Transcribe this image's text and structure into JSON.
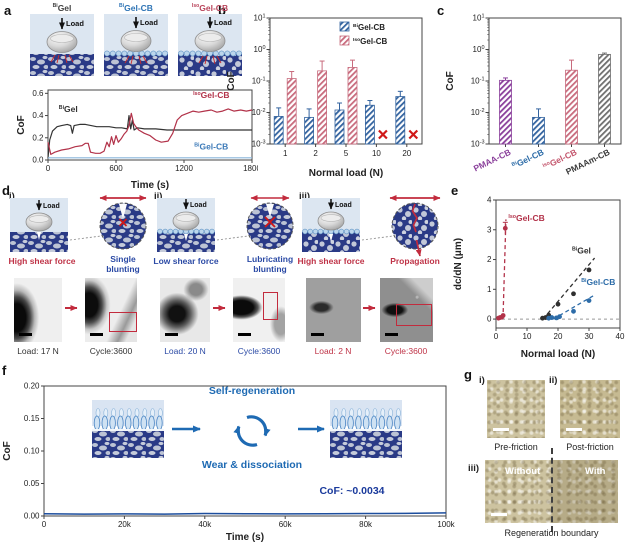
{
  "panels": {
    "a": {
      "label": "a",
      "schematics": [
        {
          "title": {
            "sup": "Bi",
            "text": "Gel"
          },
          "color": "#3f3f3f",
          "load_label": "Load"
        },
        {
          "title": {
            "sup": "Bi",
            "text": "Gel-CB"
          },
          "color": "#2e74b5",
          "load_label": "Load"
        },
        {
          "title": {
            "sup": "Iso",
            "text": "Gel-CB"
          },
          "color": "#b8435a",
          "load_label": "Load"
        }
      ]
    },
    "b": {
      "label": "b"
    },
    "c": {
      "label": "c"
    },
    "d": {
      "label": "d",
      "items": [
        {
          "roman": "i)",
          "load_label": "Load",
          "shear_label": "High shear force",
          "shear_color": "#bf3347",
          "inset_label": "Single blunting",
          "inset_color": "#2b4aa5",
          "load_caption": "Load: 17 N",
          "cycle_caption": "Cycle:3600",
          "caption_color": "#333333"
        },
        {
          "roman": "ii)",
          "load_label": "Load",
          "shear_label": "Low shear force",
          "shear_color": "#2b4aa5",
          "inset_label": "Lubricating blunting",
          "inset_color": "#2b4aa5",
          "load_caption": "Load: 20 N",
          "cycle_caption": "Cycle:3600",
          "caption_color": "#2b4aa5"
        },
        {
          "roman": "iii)",
          "load_label": "Load",
          "shear_label": "High shear force",
          "shear_color": "#bf3347",
          "inset_label": "Propagation",
          "inset_color": "#bf3347",
          "load_caption": "Load: 2 N",
          "cycle_caption": "Cycle:3600",
          "caption_color": "#bf3347"
        }
      ]
    },
    "e": {
      "label": "e"
    },
    "f": {
      "label": "f",
      "cycle_top": "Self-regeneration",
      "cycle_bottom": "Wear & dissociation",
      "cof_note": "CoF: ~0.0034",
      "accent": "#1e6ab3",
      "note_color": "#1a3a9c"
    },
    "g": {
      "label": "g",
      "items": [
        {
          "roman": "i)",
          "caption": "Pre-friction"
        },
        {
          "roman": "ii)",
          "caption": "Post-friction"
        }
      ],
      "bottom": {
        "roman": "iii)",
        "left_label": "Without",
        "right_label": "With",
        "caption": "Regeneration boundary"
      }
    }
  },
  "chart_data": [
    {
      "id": "a",
      "type": "line",
      "xlabel": "Time (s)",
      "ylabel": "CoF",
      "xlim": [
        0,
        1800
      ],
      "ylim": [
        0,
        0.63
      ],
      "xticks": [
        {
          "v": 0,
          "l": "0"
        },
        {
          "v": 600,
          "l": "600"
        },
        {
          "v": 1200,
          "l": "1200"
        },
        {
          "v": 1800,
          "l": "1800"
        }
      ],
      "yticks": [
        {
          "v": 0,
          "l": "0.0"
        },
        {
          "v": 0.2,
          "l": "0.2"
        },
        {
          "v": 0.4,
          "l": "0.4"
        },
        {
          "v": 0.6,
          "l": "0.6"
        }
      ],
      "series": [
        {
          "name": "BiGel",
          "color": "#333333",
          "width": 1.2,
          "label": {
            "sup": "Bi",
            "text": "Gel",
            "x": 95,
            "y": 0.43,
            "color": "#333333"
          },
          "points": [
            [
              0,
              0.02
            ],
            [
              15,
              0.18
            ],
            [
              40,
              0.26
            ],
            [
              80,
              0.3
            ],
            [
              120,
              0.31
            ],
            [
              170,
              0.32
            ],
            [
              200,
              0.31
            ],
            [
              215,
              0.24
            ],
            [
              230,
              0.31
            ],
            [
              280,
              0.32
            ],
            [
              330,
              0.32
            ],
            [
              380,
              0.31
            ],
            [
              430,
              0.3
            ],
            [
              480,
              0.3
            ],
            [
              540,
              0.3
            ],
            [
              600,
              0.29
            ],
            [
              650,
              0.29
            ],
            [
              700,
              0.28
            ],
            [
              715,
              0.4
            ],
            [
              730,
              0.28
            ],
            [
              745,
              0.36
            ],
            [
              760,
              0.27
            ],
            [
              790,
              0.29
            ],
            [
              850,
              0.28
            ],
            [
              950,
              0.28
            ],
            [
              1050,
              0.27
            ],
            [
              1150,
              0.27
            ],
            [
              1300,
              0.27
            ],
            [
              1500,
              0.27
            ],
            [
              1800,
              0.27
            ]
          ]
        },
        {
          "name": "IsoGel-CB",
          "color": "#b23249",
          "width": 1.2,
          "label": {
            "sup": "Iso",
            "text": "Gel-CB",
            "x": 1280,
            "y": 0.56,
            "color": "#b23249"
          },
          "points": [
            [
              0,
              0.16
            ],
            [
              25,
              0.05
            ],
            [
              60,
              0.07
            ],
            [
              120,
              0.09
            ],
            [
              180,
              0.1
            ],
            [
              240,
              0.12
            ],
            [
              300,
              0.13
            ],
            [
              330,
              0.15
            ],
            [
              355,
              0.15
            ],
            [
              375,
              0.07
            ],
            [
              420,
              0.06
            ],
            [
              460,
              0.06
            ],
            [
              495,
              0.08
            ],
            [
              520,
              0.16
            ],
            [
              540,
              0.12
            ],
            [
              560,
              0.21
            ],
            [
              580,
              0.14
            ],
            [
              600,
              0.22
            ],
            [
              620,
              0.16
            ],
            [
              645,
              0.19
            ],
            [
              670,
              0.23
            ],
            [
              695,
              0.26
            ],
            [
              715,
              0.31
            ],
            [
              735,
              0.42
            ],
            [
              755,
              0.33
            ],
            [
              775,
              0.3
            ],
            [
              800,
              0.27
            ],
            [
              850,
              0.24
            ],
            [
              900,
              0.22
            ],
            [
              950,
              0.18
            ],
            [
              1000,
              0.16
            ],
            [
              1060,
              0.17
            ],
            [
              1100,
              0.24
            ],
            [
              1140,
              0.36
            ],
            [
              1180,
              0.4
            ],
            [
              1230,
              0.42
            ],
            [
              1280,
              0.44
            ],
            [
              1330,
              0.43
            ],
            [
              1380,
              0.44
            ],
            [
              1440,
              0.45
            ],
            [
              1490,
              0.43
            ],
            [
              1540,
              0.44
            ],
            [
              1590,
              0.46
            ],
            [
              1640,
              0.44
            ],
            [
              1700,
              0.45
            ],
            [
              1750,
              0.44
            ],
            [
              1800,
              0.45
            ]
          ]
        },
        {
          "name": "BiGel-CB",
          "color": "#8ab6dc",
          "width": 1.1,
          "label": {
            "sup": "Bi",
            "text": "Gel-CB",
            "x": 1290,
            "y": 0.095,
            "color": "#3c7ab8"
          },
          "points": [
            [
              0,
              0.02
            ],
            [
              300,
              0.02
            ],
            [
              600,
              0.02
            ],
            [
              900,
              0.02
            ],
            [
              1200,
              0.02
            ],
            [
              1500,
              0.02
            ],
            [
              1800,
              0.02
            ]
          ]
        }
      ]
    },
    {
      "id": "b",
      "type": "bar",
      "ylog": true,
      "xlabel": "Normal load (N)",
      "ylabel": "CoF",
      "ylim_exp": [
        -3,
        1
      ],
      "yticks": [
        {
          "v": 10,
          "e": "1"
        },
        {
          "v": 1,
          "e": "0"
        },
        {
          "v": 0.1,
          "e": "-1"
        },
        {
          "v": 0.01,
          "e": "-2"
        },
        {
          "v": 0.001,
          "e": "-3"
        }
      ],
      "categories": [
        "1",
        "2",
        "5",
        "10",
        "20"
      ],
      "series": [
        {
          "name": "BiGel-CB",
          "label": {
            "sup": "Bi",
            "text": "Gel-CB"
          },
          "color": "#33639f",
          "pattern": "hatchBlue",
          "values": [
            0.0075,
            0.007,
            0.012,
            0.017,
            0.032
          ],
          "err_hi": [
            0.014,
            0.013,
            0.02,
            0.024,
            0.047
          ]
        },
        {
          "name": "IsoGel-CB",
          "label": {
            "sup": "Iso",
            "text": "Gel-CB"
          },
          "color": "#c86b7d",
          "pattern": "hatchRed",
          "values": [
            0.12,
            0.21,
            0.27,
            null,
            null
          ],
          "err_hi": [
            0.2,
            0.43,
            0.46,
            null,
            null
          ]
        }
      ],
      "failed_marks": {
        "series": 1,
        "category_indices": [
          3,
          4
        ],
        "symbol": "x",
        "color": "#d01818",
        "value": 0.002
      },
      "legend_position": "top-right"
    },
    {
      "id": "c",
      "type": "bar",
      "ylog": true,
      "ylabel": "CoF",
      "ylim_exp": [
        -3,
        1
      ],
      "yticks": [
        {
          "v": 10,
          "e": "1"
        },
        {
          "v": 1,
          "e": "0"
        },
        {
          "v": 0.1,
          "e": "-1"
        },
        {
          "v": 0.01,
          "e": "-2"
        },
        {
          "v": 0.001,
          "e": "-3"
        }
      ],
      "categories": [
        {
          "sup": "",
          "text": "PMAA-CB",
          "color": "#8a3f9b"
        },
        {
          "sup": "Bi",
          "text": "Gel-CB",
          "color": "#2d6ca8"
        },
        {
          "sup": "Iso",
          "text": "Gel-CB",
          "color": "#c4566d"
        },
        {
          "sup": "",
          "text": "PMAAm-CB",
          "color": "#3a3a3a"
        }
      ],
      "values": [
        0.105,
        0.007,
        0.22,
        0.7
      ],
      "err_hi": [
        0.125,
        0.013,
        0.46,
        0.77
      ],
      "bar_colors": [
        "#8a3f9b",
        "#33639f",
        "#c86b7d",
        "#6f6f6f"
      ],
      "patterns": [
        "hatchPurple",
        "hatchBlue",
        "hatchRed",
        "hatchGray"
      ]
    },
    {
      "id": "e",
      "type": "scatter",
      "xlabel": "Normal load (N)",
      "ylabel": "dc/dN (μm)",
      "xlim": [
        0,
        40
      ],
      "ylim": [
        -0.3,
        4
      ],
      "zero_line": 0,
      "xticks": [
        {
          "v": 0,
          "l": "0"
        },
        {
          "v": 10,
          "l": "10"
        },
        {
          "v": 20,
          "l": "20"
        },
        {
          "v": 30,
          "l": "30"
        },
        {
          "v": 40,
          "l": "40"
        }
      ],
      "yticks": [
        {
          "v": 0,
          "l": "0"
        },
        {
          "v": 1,
          "l": "1"
        },
        {
          "v": 2,
          "l": "2"
        },
        {
          "v": 3,
          "l": "3"
        },
        {
          "v": 4,
          "l": "4"
        }
      ],
      "series": [
        {
          "name": "IsoGel-CB",
          "color": "#b23249",
          "label": {
            "sup": "Iso",
            "text": "Gel-CB",
            "x": 4,
            "y": 3.3
          },
          "points": [
            [
              0.8,
              0.03
            ],
            [
              1.3,
              0.05
            ],
            [
              1.8,
              0.06
            ],
            [
              2.3,
              0.12
            ],
            [
              3,
              3.05
            ]
          ],
          "err": [
            [
              3,
              3.05,
              0.2
            ]
          ],
          "fit": [
            [
              2.25,
              0
            ],
            [
              3.2,
              3.35
            ]
          ]
        },
        {
          "name": "BiGel",
          "color": "#2f2f2f",
          "label": {
            "sup": "Bi",
            "text": "Gel",
            "x": 24.5,
            "y": 2.2
          },
          "points": [
            [
              15,
              0.03
            ],
            [
              16,
              0.05
            ],
            [
              17,
              0.13
            ],
            [
              20,
              0.5
            ],
            [
              25,
              0.85
            ],
            [
              30,
              1.65
            ]
          ],
          "err": [],
          "fit": [
            [
              15.2,
              0
            ],
            [
              31.8,
              2.05
            ]
          ]
        },
        {
          "name": "BiGel-CB",
          "color": "#2d6ca8",
          "label": {
            "sup": "Bi",
            "text": "Gel-CB",
            "x": 27.5,
            "y": 1.15
          },
          "points": [
            [
              17,
              0.03
            ],
            [
              18,
              0.05
            ],
            [
              19.5,
              0.04
            ],
            [
              20.5,
              0.08
            ],
            [
              25,
              0.26
            ],
            [
              30,
              0.62
            ]
          ],
          "err": [],
          "fit": [
            [
              18.5,
              0
            ],
            [
              32,
              0.82
            ]
          ]
        }
      ]
    },
    {
      "id": "f",
      "type": "line",
      "xlabel": "Time (s)",
      "ylabel": "CoF",
      "xlim": [
        0,
        100000
      ],
      "ylim": [
        0,
        0.2
      ],
      "xticks": [
        {
          "v": 0,
          "l": "0"
        },
        {
          "v": 20000,
          "l": "20k"
        },
        {
          "v": 40000,
          "l": "40k"
        },
        {
          "v": 60000,
          "l": "60k"
        },
        {
          "v": 80000,
          "l": "80k"
        },
        {
          "v": 100000,
          "l": "100k"
        }
      ],
      "yticks": [
        {
          "v": 0,
          "l": "0.00"
        },
        {
          "v": 0.05,
          "l": "0.05"
        },
        {
          "v": 0.1,
          "l": "0.10"
        },
        {
          "v": 0.15,
          "l": "0.15"
        },
        {
          "v": 0.2,
          "l": "0.20"
        }
      ],
      "series": [
        {
          "name": "IsoGel-CB-longterm",
          "color": "#1d4e9e",
          "width": 1.5,
          "points": [
            [
              0,
              0.0034
            ],
            [
              10000,
              0.003
            ],
            [
              20000,
              0.0032
            ],
            [
              30000,
              0.003
            ],
            [
              40000,
              0.0038
            ],
            [
              50000,
              0.0035
            ],
            [
              60000,
              0.0033
            ],
            [
              70000,
              0.0036
            ],
            [
              80000,
              0.0038
            ],
            [
              90000,
              0.004
            ],
            [
              100000,
              0.0048
            ]
          ]
        }
      ]
    }
  ]
}
